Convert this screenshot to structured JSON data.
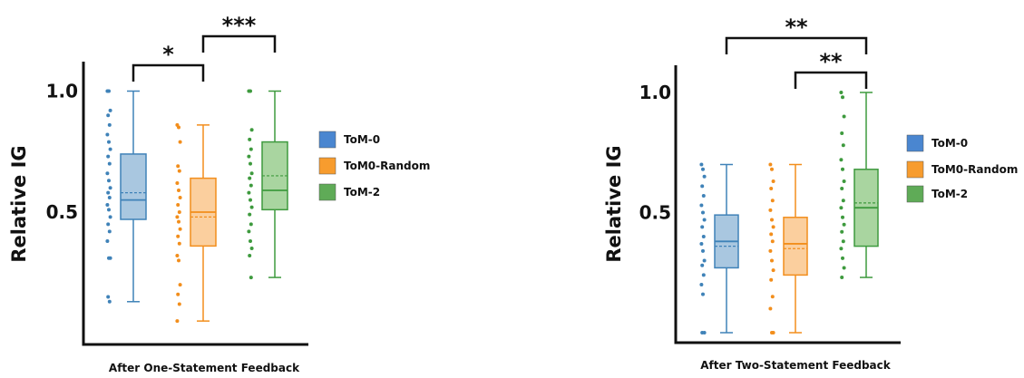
{
  "chart_data": [
    {
      "type": "box",
      "xlabel": "After One-Statement Feedback",
      "ylabel": "Relative IG",
      "ylim": [
        0.0,
        1.12
      ],
      "yticks": [
        {
          "value": 0.5,
          "label": "0.5"
        },
        {
          "value": 1.0,
          "label": "1.0"
        }
      ],
      "legend": [
        {
          "name": "ToM-0",
          "color": "#4a86d0"
        },
        {
          "name": "ToM0-Random",
          "color": "#f79c2e"
        },
        {
          "name": "ToM-2",
          "color": "#5fab57"
        }
      ],
      "legend_position": "right",
      "series": [
        {
          "name": "ToM-0",
          "color": "#3f82b8",
          "fill": "#a9c7e0",
          "whisker_low": 0.13,
          "q1": 0.47,
          "median": 0.55,
          "mean": 0.58,
          "q3": 0.74,
          "whisker_high": 1.0,
          "points": [
            1.0,
            1.0,
            0.92,
            0.9,
            0.86,
            0.82,
            0.79,
            0.76,
            0.73,
            0.7,
            0.66,
            0.63,
            0.6,
            0.58,
            0.56,
            0.53,
            0.51,
            0.48,
            0.45,
            0.42,
            0.38,
            0.31,
            0.31,
            0.15,
            0.13
          ]
        },
        {
          "name": "ToM0-Random",
          "color": "#f28e1c",
          "fill": "#fbcf9e",
          "whisker_low": 0.05,
          "q1": 0.36,
          "median": 0.5,
          "mean": 0.48,
          "q3": 0.64,
          "whisker_high": 0.86,
          "points": [
            0.86,
            0.85,
            0.79,
            0.69,
            0.67,
            0.62,
            0.59,
            0.56,
            0.53,
            0.5,
            0.48,
            0.46,
            0.43,
            0.4,
            0.37,
            0.32,
            0.3,
            0.2,
            0.16,
            0.12,
            0.05
          ]
        },
        {
          "name": "ToM-2",
          "color": "#3e9a3e",
          "fill": "#a9d5a0",
          "whisker_low": 0.23,
          "q1": 0.51,
          "median": 0.59,
          "mean": 0.65,
          "q3": 0.79,
          "whisker_high": 1.0,
          "points": [
            1.0,
            1.0,
            0.84,
            0.8,
            0.76,
            0.73,
            0.7,
            0.66,
            0.64,
            0.61,
            0.58,
            0.55,
            0.52,
            0.49,
            0.45,
            0.42,
            0.38,
            0.35,
            0.32,
            0.23
          ]
        }
      ],
      "significance": [
        {
          "from": 0,
          "to": 1,
          "label": "*",
          "level": 1
        },
        {
          "from": 1,
          "to": 2,
          "label": "***",
          "level": 2
        }
      ]
    },
    {
      "type": "box",
      "xlabel": "After Two-Statement Feedback",
      "ylabel": "Relative IG",
      "ylim": [
        0.0,
        1.12
      ],
      "yticks": [
        {
          "value": 0.5,
          "label": "0.5"
        },
        {
          "value": 1.0,
          "label": "1.0"
        }
      ],
      "legend": [
        {
          "name": "ToM-0",
          "color": "#4a86d0"
        },
        {
          "name": "ToM0-Random",
          "color": "#f79c2e"
        },
        {
          "name": "ToM-2",
          "color": "#5fab57"
        }
      ],
      "legend_position": "right",
      "series": [
        {
          "name": "ToM-0",
          "color": "#3f82b8",
          "fill": "#a9c7e0",
          "whisker_low": 0.0,
          "q1": 0.27,
          "median": 0.38,
          "mean": 0.36,
          "q3": 0.49,
          "whisker_high": 0.7,
          "points": [
            0.7,
            0.68,
            0.65,
            0.61,
            0.57,
            0.53,
            0.5,
            0.47,
            0.44,
            0.4,
            0.37,
            0.34,
            0.3,
            0.28,
            0.24,
            0.2,
            0.16,
            0.0,
            0.0
          ]
        },
        {
          "name": "ToM0-Random",
          "color": "#f28e1c",
          "fill": "#fbcf9e",
          "whisker_low": 0.0,
          "q1": 0.24,
          "median": 0.37,
          "mean": 0.35,
          "q3": 0.48,
          "whisker_high": 0.7,
          "points": [
            0.7,
            0.68,
            0.63,
            0.6,
            0.55,
            0.51,
            0.47,
            0.44,
            0.41,
            0.38,
            0.34,
            0.3,
            0.26,
            0.22,
            0.15,
            0.1,
            0.0,
            0.0
          ]
        },
        {
          "name": "ToM-2",
          "color": "#3e9a3e",
          "fill": "#a9d5a0",
          "whisker_low": 0.23,
          "q1": 0.36,
          "median": 0.52,
          "mean": 0.54,
          "q3": 0.68,
          "whisker_high": 1.0,
          "points": [
            1.0,
            0.98,
            0.9,
            0.83,
            0.78,
            0.72,
            0.68,
            0.63,
            0.6,
            0.55,
            0.52,
            0.48,
            0.45,
            0.42,
            0.38,
            0.35,
            0.31,
            0.27,
            0.23
          ]
        }
      ],
      "significance": [
        {
          "from": 1,
          "to": 2,
          "label": "**",
          "level": 1
        },
        {
          "from": 0,
          "to": 2,
          "label": "**",
          "level": 2
        }
      ]
    }
  ]
}
